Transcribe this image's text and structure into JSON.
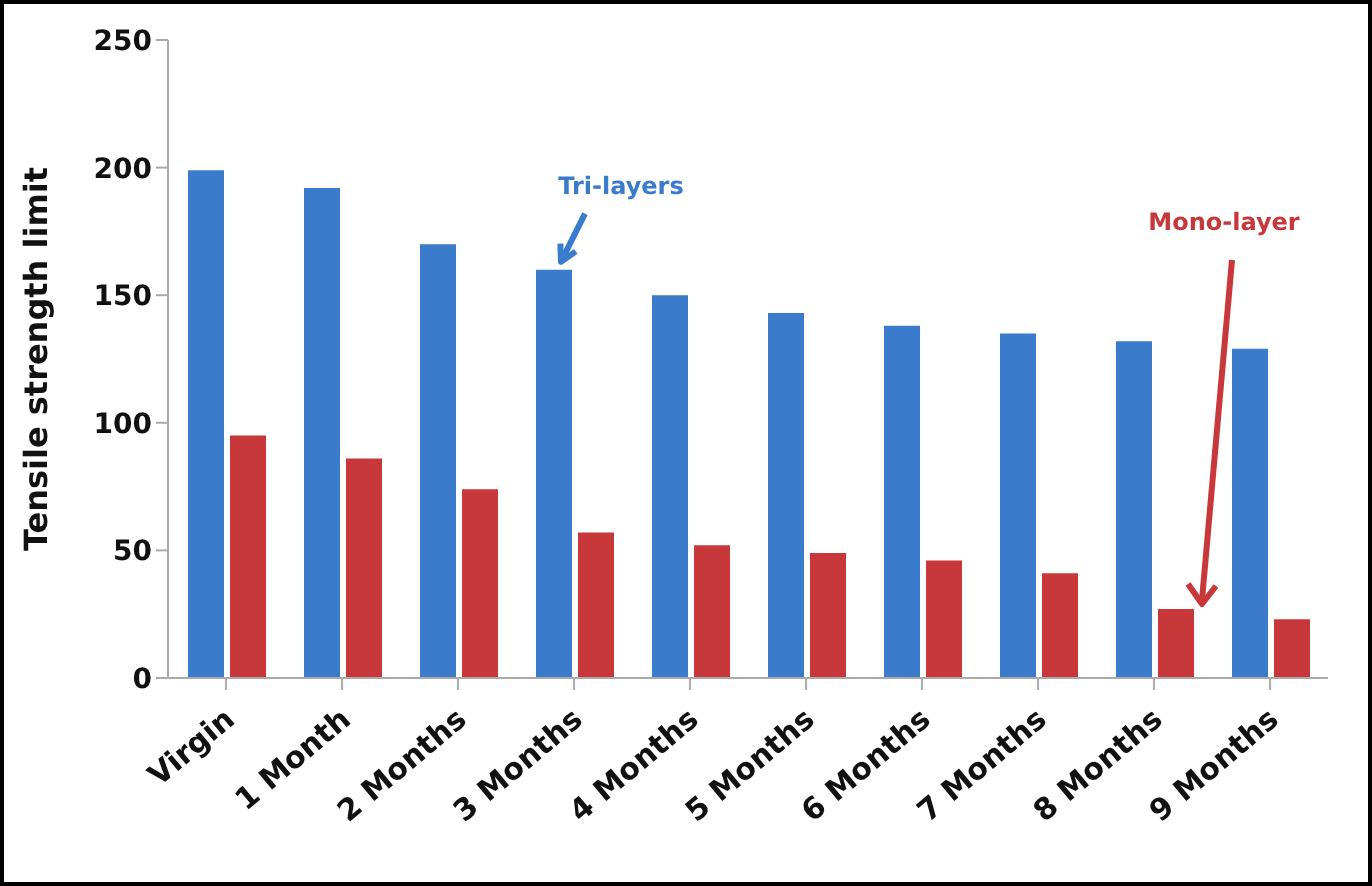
{
  "chart_data": {
    "type": "bar",
    "ylabel": "Tensile strength limit",
    "categories": [
      "Virgin",
      "1 Month",
      "2 Months",
      "3 Months",
      "4 Months",
      "5 Months",
      "6 Months",
      "7 Months",
      "8 Months",
      "9 Months"
    ],
    "series": [
      {
        "color": "#3b7bcb",
        "values": [
          199,
          192,
          170,
          160,
          150,
          143,
          138,
          135,
          132,
          129
        ]
      },
      {
        "color": "#c8383a",
        "values": [
          95,
          86,
          74,
          57,
          52,
          49,
          46,
          41,
          27,
          23
        ]
      }
    ],
    "ylim": [
      0,
      250
    ],
    "yticks": [
      0,
      50,
      100,
      150,
      200,
      250
    ],
    "annotations": [
      {
        "text": "Tri-layers",
        "x": "3 Months",
        "y": 160
      },
      "Mono-layer"
    ],
    "grid": false,
    "legend": false
  }
}
